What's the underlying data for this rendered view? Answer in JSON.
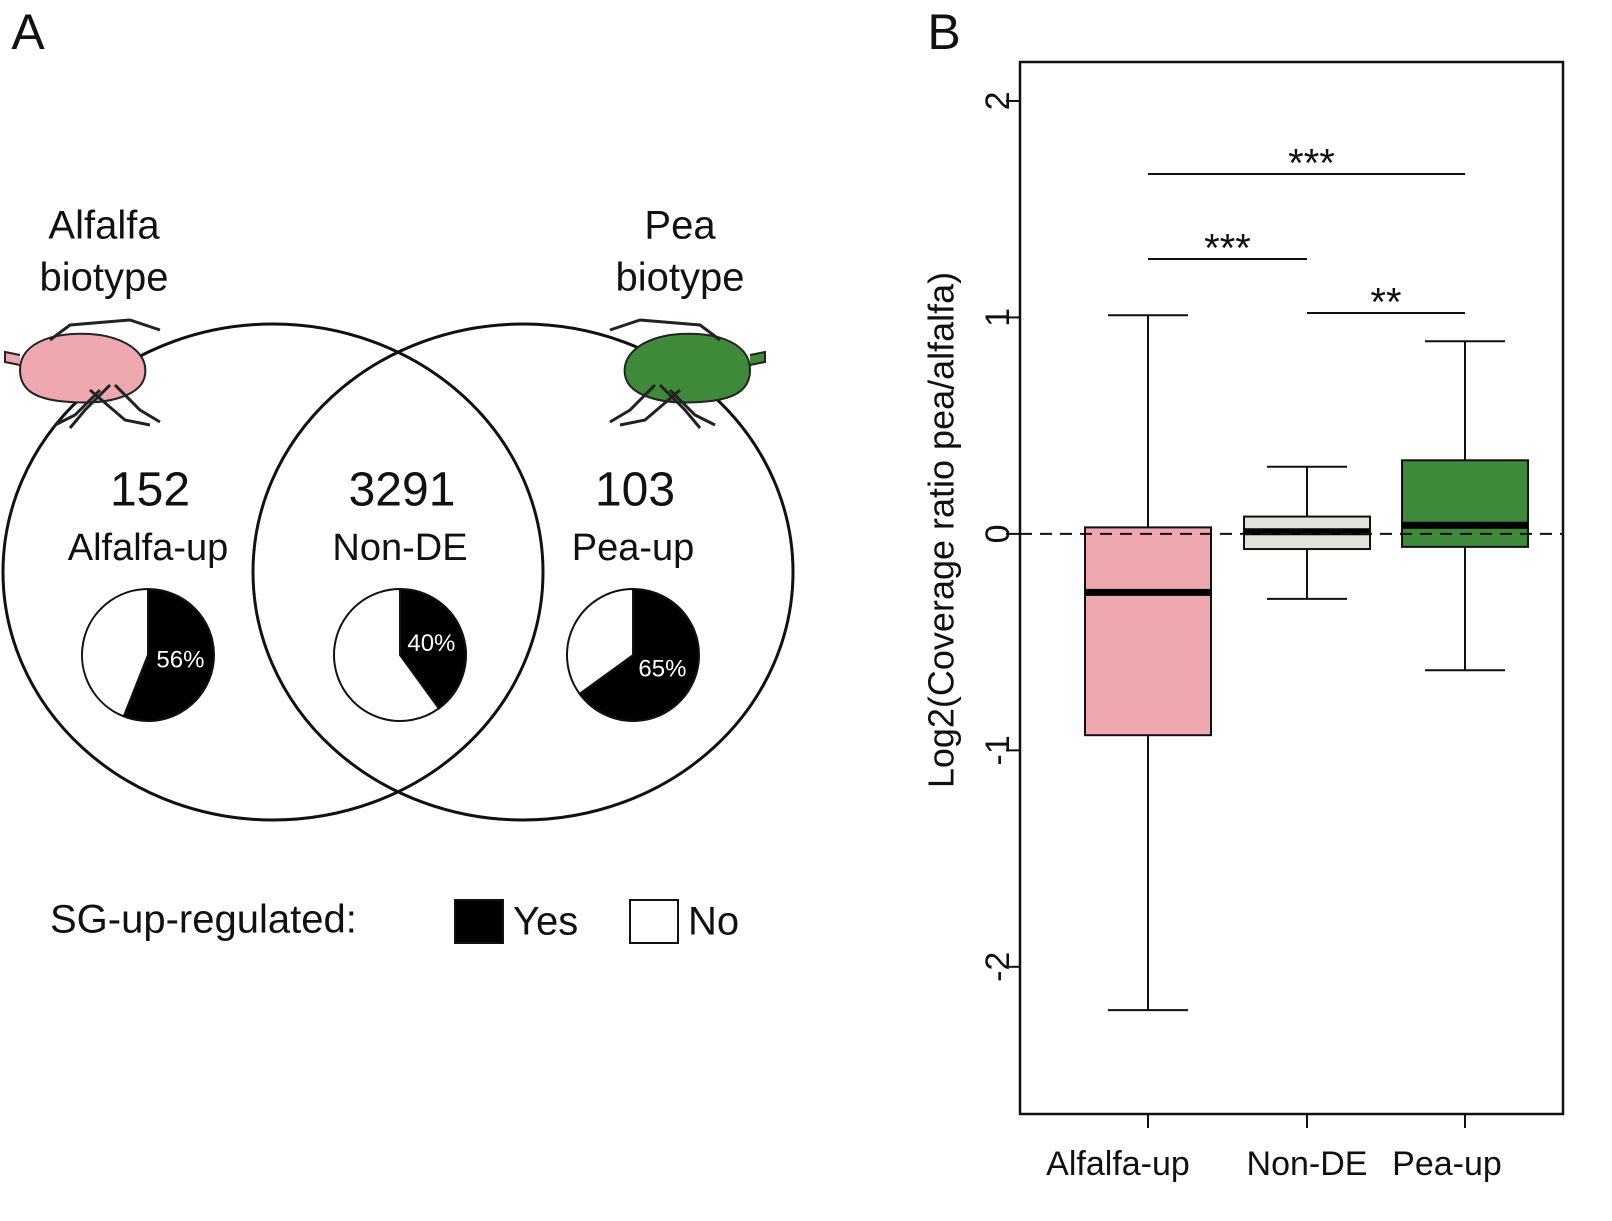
{
  "chart_data": [
    {
      "type": "venn",
      "panel_label": "A",
      "sets": [
        {
          "name": [
            "Alfalfa",
            "biotype"
          ],
          "color": "#f0a8b0"
        },
        {
          "name": [
            "Pea",
            "biotype"
          ],
          "color": "#3f8a3a"
        }
      ],
      "regions": [
        {
          "count": 152,
          "name": "Alfalfa-up",
          "pie": {
            "values": [
              56,
              44
            ],
            "value_labels": [
              "56%",
              null
            ]
          }
        },
        {
          "count": 3291,
          "name": "Non-DE",
          "pie": {
            "values": [
              40,
              60
            ],
            "value_labels": [
              "40%",
              null
            ]
          }
        },
        {
          "count": 103,
          "name": "Pea-up",
          "pie": {
            "values": [
              65,
              35
            ],
            "value_labels": [
              "65%",
              null
            ]
          }
        }
      ],
      "legend": {
        "title": "SG-up-regulated:",
        "series": [
          {
            "name": "Yes",
            "color": "#000000"
          },
          {
            "name": "No",
            "color": "#ffffff"
          }
        ]
      }
    },
    {
      "type": "box",
      "panel_label": "B",
      "ylabel": "Log2(Coverage ratio pea/alfalfa)",
      "categories": [
        "Alfalfa-up",
        "Non-DE",
        "Pea-up"
      ],
      "colors": [
        "#f0a8b0",
        "#e2e2dc",
        "#3f8a3a"
      ],
      "boxes": [
        {
          "whisker_low": -2.2,
          "q1": -0.93,
          "median": -0.27,
          "q3": 0.03,
          "whisker_high": 1.01
        },
        {
          "whisker_low": -0.3,
          "q1": -0.07,
          "median": 0.01,
          "q3": 0.08,
          "whisker_high": 0.31
        },
        {
          "whisker_low": -0.63,
          "q1": -0.06,
          "median": 0.04,
          "q3": 0.34,
          "whisker_high": 0.89
        }
      ],
      "hline": 0,
      "significance": [
        {
          "from": 0,
          "to": 2,
          "label": "***"
        },
        {
          "from": 0,
          "to": 1,
          "label": "***"
        },
        {
          "from": 1,
          "to": 2,
          "label": "**"
        }
      ],
      "ylim": [
        -2.68,
        2.18
      ],
      "yticks": [
        -2,
        -1,
        0,
        1,
        2
      ]
    }
  ]
}
